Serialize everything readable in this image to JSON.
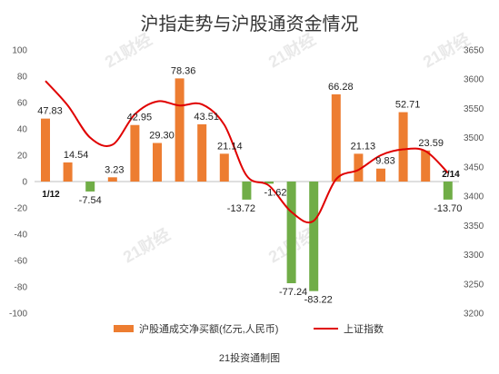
{
  "chart_data": {
    "type": "bar",
    "title": "沪指走势与沪股通资金情况",
    "source": "21投资通制图",
    "watermark": "21财经",
    "y_left": {
      "ylim": [
        -100,
        100
      ],
      "ticks": [
        -100,
        -80,
        -60,
        -40,
        -20,
        0,
        20,
        40,
        60,
        80,
        100
      ]
    },
    "y_right": {
      "ylim": [
        3200,
        3650
      ],
      "ticks": [
        3200,
        3250,
        3300,
        3350,
        3400,
        3450,
        3500,
        3550,
        3600,
        3650
      ]
    },
    "series": [
      {
        "name": "沪股通成交净买额(亿元,人民币)",
        "type": "bar",
        "axis": "left",
        "values": [
          47.83,
          14.54,
          -7.54,
          3.23,
          42.95,
          29.3,
          78.36,
          43.51,
          21.14,
          -13.72,
          -1.62,
          -77.24,
          -83.22,
          66.28,
          21.13,
          9.83,
          52.71,
          23.59,
          -13.7
        ],
        "labels": [
          "47.83",
          "14.54",
          "-7.54",
          "3.23",
          "42.95",
          "29.30",
          "78.36",
          "43.51",
          "21.14",
          "-13.72",
          "-1.62",
          "-77.24",
          "-83.22",
          "66.28",
          "21.13",
          "9.83",
          "52.71",
          "23.59",
          "-13.70"
        ],
        "positive_color": "#ed7d31",
        "negative_color": "#70ad47"
      },
      {
        "name": "上证指数",
        "type": "line",
        "axis": "right",
        "color": "#e00000",
        "values": [
          3597,
          3555,
          3500,
          3488,
          3540,
          3562,
          3555,
          3557,
          3522,
          3435,
          3418,
          3373,
          3358,
          3429,
          3445,
          3470,
          3480,
          3477,
          3440
        ]
      }
    ],
    "annotations": [
      {
        "text": "1/12",
        "index": 0
      },
      {
        "text": "2/14",
        "index": 18
      }
    ],
    "legend": {
      "placement": "bottom"
    },
    "grid": false
  }
}
